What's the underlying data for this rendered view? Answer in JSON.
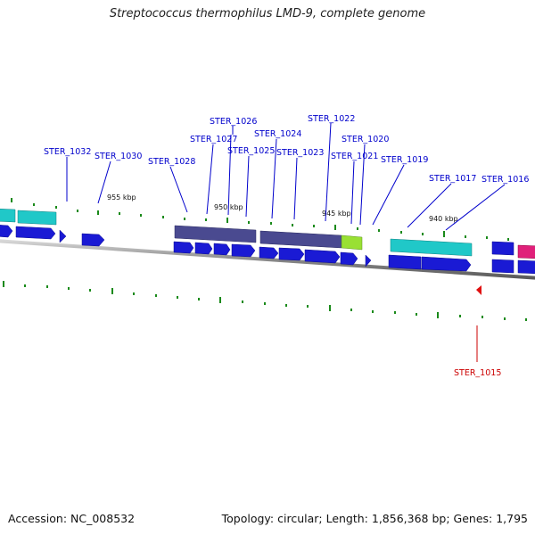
{
  "title": "Streptococcus thermophilus LMD-9, complete genome",
  "footer": {
    "accession": "Accession: NC_008532",
    "summary": "Topology: circular; Length: 1,856,368 bp; Genes: 1,795"
  },
  "colors": {
    "cds": "#1a1ad4",
    "hypothetical": "#20c8c8",
    "operon": "#4a4a90",
    "lime": "#99e033",
    "magenta": "#e0207a",
    "tick": "#1a8a1a",
    "label": "#0000cc",
    "highlight_label": "#cc0000"
  },
  "kbp_labels": [
    "955 kbp",
    "950 kbp",
    "945 kbp",
    "940 kbp"
  ],
  "gene_labels": [
    "STER_1032",
    "STER_1030",
    "STER_1028",
    "STER_1027",
    "STER_1026",
    "STER_1025",
    "STER_1024",
    "STER_1023",
    "STER_1022",
    "STER_1021",
    "STER_1020",
    "STER_1019",
    "STER_1017",
    "STER_1016",
    "STER_1015"
  ],
  "highlight_gene": "STER_1015"
}
